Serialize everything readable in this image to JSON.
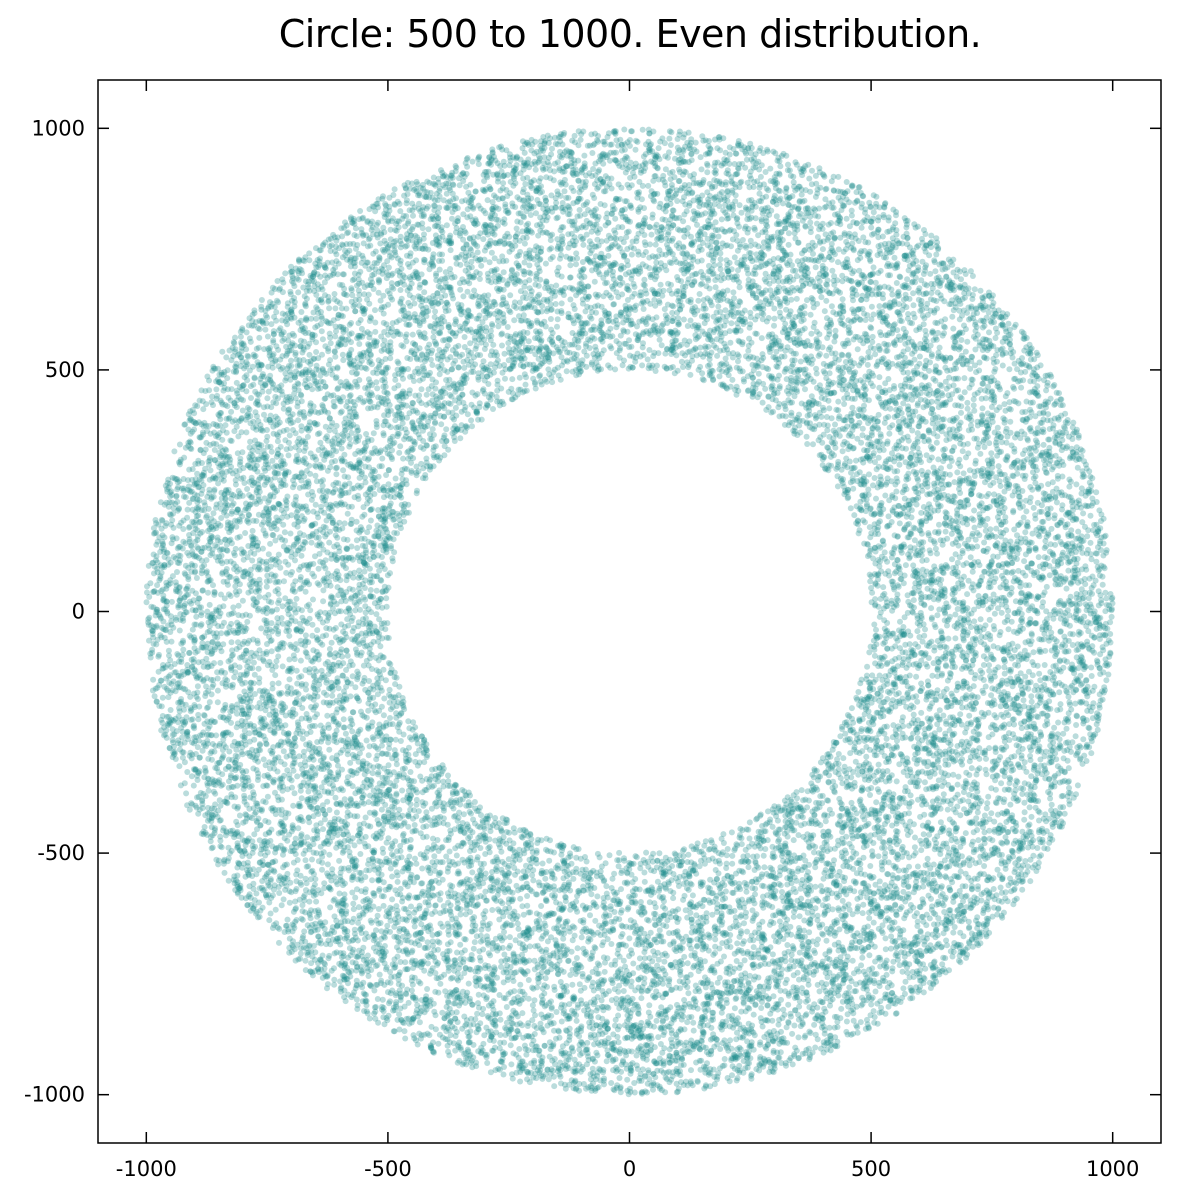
{
  "chart_data": {
    "type": "scatter",
    "title": "Circle: 500 to 1000. Even distribution.",
    "xlabel": "",
    "ylabel": "",
    "xlim": [
      -1100,
      1100
    ],
    "ylim": [
      -1100,
      1100
    ],
    "x_ticks": [
      -1000,
      -500,
      0,
      500,
      1000
    ],
    "y_ticks": [
      -1000,
      -500,
      0,
      500,
      1000
    ],
    "x_tick_labels": [
      "-1000",
      "-500",
      "0",
      "500",
      "1000"
    ],
    "y_tick_labels": [
      "-1000",
      "-500",
      "0",
      "500",
      "1000"
    ],
    "grid": false,
    "legend": "none",
    "series": [
      {
        "distribution": "uniform over annulus area",
        "inner_radius": 500,
        "outer_radius": 1000,
        "center": [
          0,
          0
        ],
        "point_count": 20000,
        "color": "#1a8c8c",
        "point_opacity": 0.3
      }
    ]
  }
}
